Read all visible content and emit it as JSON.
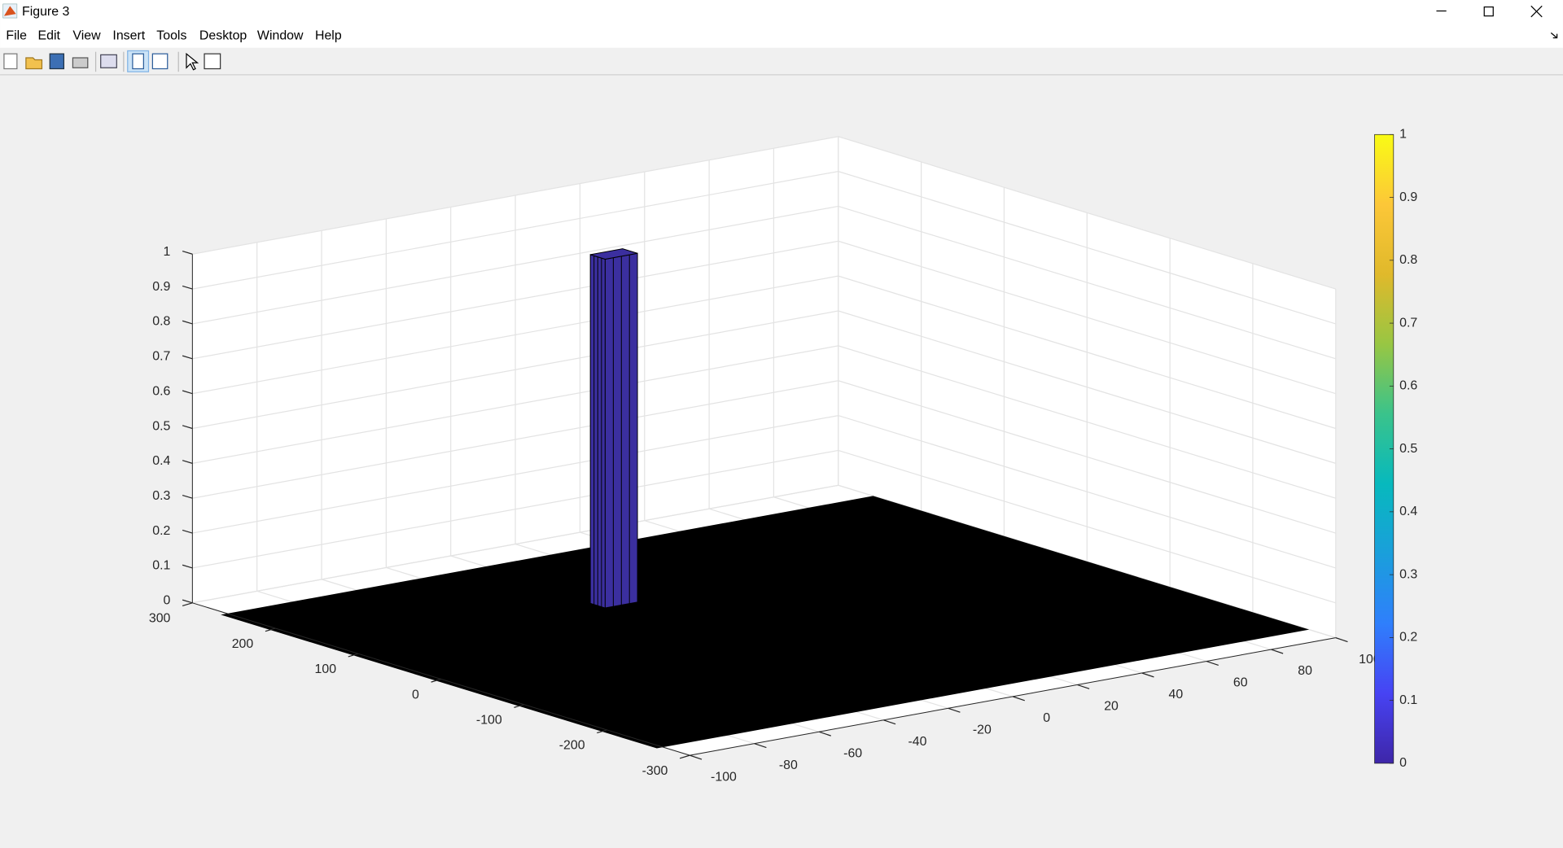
{
  "window": {
    "title": "Figure 3"
  },
  "menu": {
    "items": [
      "File",
      "Edit",
      "View",
      "Insert",
      "Tools",
      "Desktop",
      "Window",
      "Help"
    ]
  },
  "chart_data": {
    "type": "surface3d",
    "xlim": [
      -100,
      100
    ],
    "xticks": [
      -100,
      -80,
      -60,
      -40,
      -20,
      0,
      20,
      40,
      60,
      80,
      100
    ],
    "ylim": [
      -300,
      300
    ],
    "yticks": [
      -300,
      -200,
      -100,
      0,
      100,
      200,
      300
    ],
    "zlim": [
      0,
      1
    ],
    "zticks": [
      0,
      0.1,
      0.2,
      0.3,
      0.4,
      0.5,
      0.6,
      0.7,
      0.8,
      0.9,
      1
    ],
    "grid": true,
    "floor": {
      "x": [
        -102,
        100
      ],
      "y": [
        -268,
        258
      ],
      "z": 0,
      "color": "#000000"
    },
    "peak": {
      "x": -18,
      "y": 111,
      "z": 1,
      "color": "#3b2f9f"
    },
    "colorbar": {
      "clim": [
        0,
        1
      ],
      "ticks": [
        0,
        0.1,
        0.2,
        0.3,
        0.4,
        0.5,
        0.6,
        0.7,
        0.8,
        0.9,
        1
      ],
      "colormap": [
        "#3e26a8",
        "#4743f3",
        "#2f7ffc",
        "#1a9fdb",
        "#07b9bd",
        "#3ac38b",
        "#98c643",
        "#e0b92b",
        "#fcc738",
        "#f9fb15"
      ]
    }
  }
}
